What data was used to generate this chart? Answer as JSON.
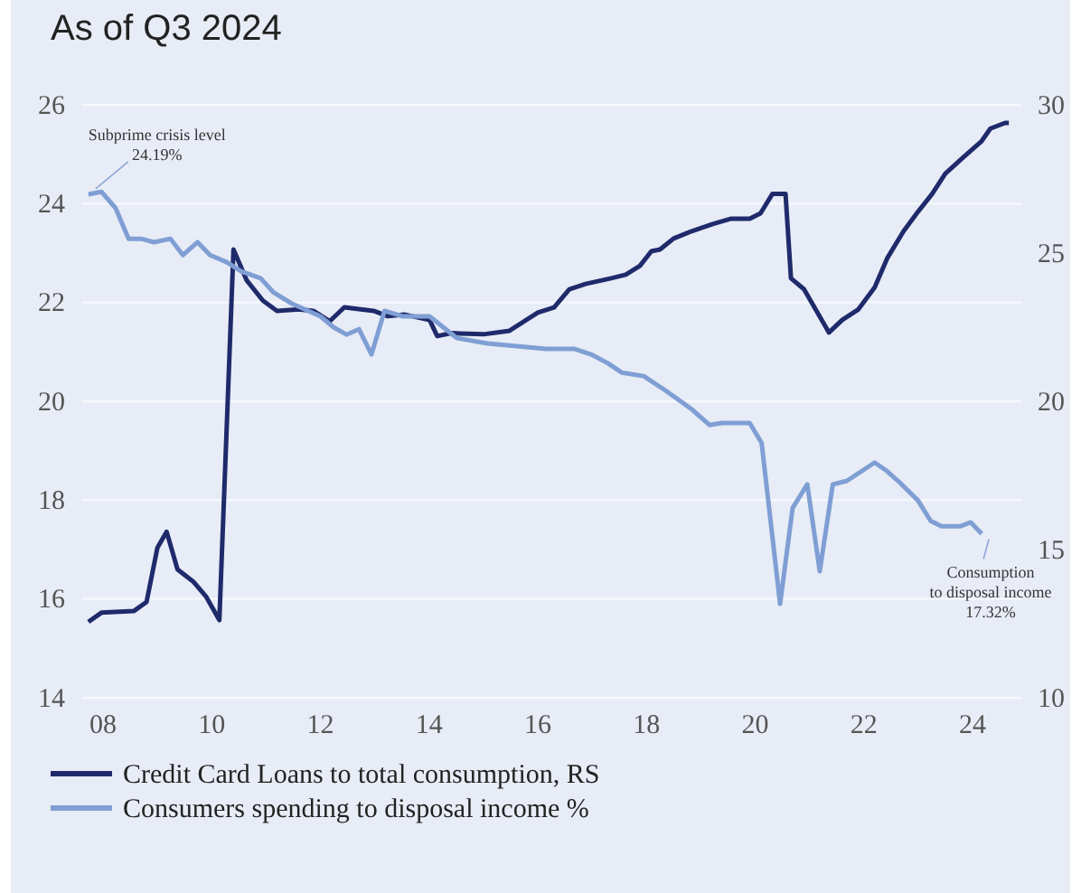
{
  "chart_data": {
    "type": "line",
    "title": "As of Q3 2024",
    "xlim": [
      2007.6,
      2024.9
    ],
    "xticks": [
      {
        "value": 2008,
        "label": "08"
      },
      {
        "value": 2010,
        "label": "10"
      },
      {
        "value": 2012,
        "label": "12"
      },
      {
        "value": 2014,
        "label": "14"
      },
      {
        "value": 2016,
        "label": "16"
      },
      {
        "value": 2018,
        "label": "18"
      },
      {
        "value": 2020,
        "label": "20"
      },
      {
        "value": 2022,
        "label": "22"
      },
      {
        "value": 2024,
        "label": "24"
      }
    ],
    "ylim": [
      14,
      26
    ],
    "yticks": [
      14,
      16,
      18,
      20,
      22,
      24,
      26
    ],
    "y2lim": [
      10,
      30
    ],
    "y2ticks": [
      10,
      15,
      20,
      25,
      30
    ],
    "grid": "y",
    "legend": "bottom",
    "series": [
      {
        "name": "Credit Card Loans to total consumption, RS",
        "color": "#1f2a6b",
        "axis": "y2",
        "x": [
          2007.73,
          2007.97,
          2008.57,
          2008.8,
          2009.0,
          2009.17,
          2009.37,
          2009.67,
          2009.9,
          2010.14,
          2010.4,
          2010.64,
          2010.94,
          2011.2,
          2011.6,
          2011.87,
          2012.17,
          2012.44,
          2012.98,
          2013.24,
          2013.54,
          2014.01,
          2014.15,
          2014.41,
          2015.0,
          2015.48,
          2016.0,
          2016.3,
          2016.58,
          2016.88,
          2017.35,
          2017.62,
          2017.88,
          2018.09,
          2018.25,
          2018.5,
          2018.82,
          2019.22,
          2019.56,
          2019.9,
          2020.1,
          2020.32,
          2020.56,
          2020.66,
          2020.9,
          2021.36,
          2021.6,
          2021.9,
          2022.2,
          2022.43,
          2022.73,
          2023.0,
          2023.26,
          2023.5,
          2023.83,
          2024.17,
          2024.33,
          2024.6,
          2024.67
        ],
        "values": [
          12.56,
          12.87,
          12.93,
          13.23,
          15.06,
          15.6,
          14.33,
          13.9,
          13.4,
          12.62,
          25.12,
          24.09,
          23.4,
          23.05,
          23.1,
          23.05,
          22.7,
          23.17,
          23.05,
          22.87,
          22.93,
          22.74,
          22.2,
          22.3,
          22.26,
          22.38,
          22.99,
          23.17,
          23.78,
          23.96,
          24.15,
          24.27,
          24.57,
          25.06,
          25.12,
          25.49,
          25.73,
          25.98,
          26.16,
          26.16,
          26.34,
          27.0,
          27.0,
          24.15,
          23.78,
          22.32,
          22.74,
          23.1,
          23.84,
          24.82,
          25.73,
          26.4,
          27.0,
          27.68,
          28.23,
          28.78,
          29.2,
          29.39,
          29.39
        ]
      },
      {
        "name": "Consumers spending to disposal income %",
        "color": "#7f9fd4",
        "x": [
          2007.73,
          2007.97,
          2008.23,
          2008.47,
          2008.7,
          2008.94,
          2009.24,
          2009.47,
          2009.74,
          2009.97,
          2010.27,
          2010.54,
          2010.9,
          2011.14,
          2011.47,
          2012.0,
          2012.24,
          2012.48,
          2012.71,
          2012.94,
          2013.18,
          2013.51,
          2014.01,
          2014.51,
          2015.08,
          2016.15,
          2016.68,
          2016.98,
          2017.29,
          2017.55,
          2017.95,
          2018.35,
          2018.82,
          2019.16,
          2019.39,
          2019.9,
          2020.12,
          2020.46,
          2020.69,
          2020.96,
          2021.19,
          2021.43,
          2021.69,
          2022.2,
          2022.4,
          2022.63,
          2023.0,
          2023.23,
          2023.43,
          2023.77,
          2023.97,
          2024.17
        ],
        "values": [
          24.19,
          24.24,
          23.91,
          23.29,
          23.29,
          23.22,
          23.29,
          22.96,
          23.22,
          22.96,
          22.82,
          22.63,
          22.49,
          22.2,
          21.98,
          21.72,
          21.5,
          21.35,
          21.46,
          20.95,
          21.83,
          21.72,
          21.72,
          21.28,
          21.17,
          21.06,
          21.06,
          20.95,
          20.77,
          20.58,
          20.51,
          20.22,
          19.85,
          19.52,
          19.56,
          19.56,
          19.16,
          15.9,
          17.84,
          18.32,
          16.56,
          18.32,
          18.39,
          18.76,
          18.61,
          18.39,
          17.99,
          17.58,
          17.47,
          17.47,
          17.55,
          17.32
        ]
      }
    ],
    "annotations": [
      {
        "text": "Subprime crisis level\n24.19%",
        "x": 2007.73,
        "y": 24.19
      },
      {
        "text": "Consumption\nto disposal income\n17.32%",
        "x": 2024.17,
        "y": 17.32
      }
    ]
  }
}
